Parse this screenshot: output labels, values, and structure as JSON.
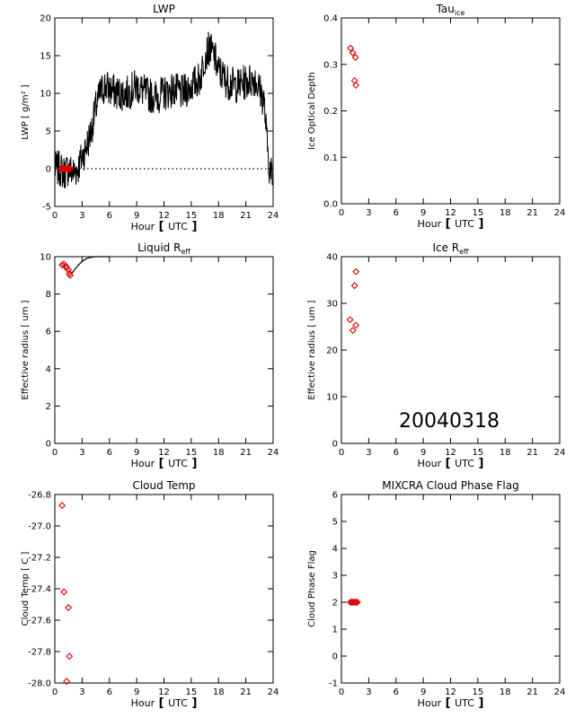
{
  "figure": {
    "date_stamp": "20040318",
    "colors": {
      "axis": "#000000",
      "line": "#000000",
      "marker": "#dd0000",
      "background": "#ffffff"
    }
  },
  "chart_data": [
    {
      "id": "lwp",
      "type": "line",
      "title": "LWP",
      "xlabel_parts": [
        "Hour",
        "UTC"
      ],
      "ylabel": "LWP [ g/m² ]",
      "xlim": [
        0,
        24
      ],
      "ylim": [
        -5,
        20
      ],
      "xticks": [
        0,
        3,
        6,
        9,
        12,
        15,
        18,
        21,
        24
      ],
      "yticks": [
        -5,
        0,
        5,
        10,
        15,
        20
      ],
      "reference_line": {
        "y": 0,
        "style": "dotted"
      },
      "series": [
        {
          "style": "noisy-line",
          "x": [
            0,
            0.5,
            1.0,
            1.5,
            2.0,
            2.5,
            3.0,
            3.5,
            4.0,
            4.5,
            5.0,
            5.5,
            6.0,
            7.0,
            8.0,
            9.0,
            10.0,
            11.0,
            12.0,
            13.0,
            14.0,
            15.0,
            15.5,
            16.0,
            16.5,
            17.0,
            17.5,
            18.0,
            19.0,
            20.0,
            21.0,
            22.0,
            23.0,
            23.3,
            23.6,
            23.9
          ],
          "y": [
            0,
            0,
            -0.5,
            0,
            -0.5,
            0,
            1.5,
            3,
            5,
            8,
            10,
            11,
            10.5,
            10,
            10,
            11,
            10,
            9.5,
            10,
            10.5,
            10,
            11,
            11.5,
            12,
            15,
            16,
            15,
            13,
            11.5,
            11,
            11.5,
            12,
            9,
            4,
            0,
            -1
          ],
          "noise": 1.5
        },
        {
          "style": "markers",
          "x": [
            0.7,
            0.8,
            0.9,
            1.0,
            1.1,
            1.2,
            1.3,
            1.4,
            1.5,
            1.6,
            1.7
          ],
          "y": [
            0,
            0,
            0,
            0,
            0,
            0,
            0,
            0,
            0,
            0,
            0
          ]
        }
      ]
    },
    {
      "id": "tau_ice",
      "type": "scatter",
      "title_main": "Tau",
      "title_sub": "ice",
      "xlabel_parts": [
        "Hour",
        "UTC"
      ],
      "ylabel": "Ice Optical Depth",
      "xlim": [
        0,
        24
      ],
      "ylim": [
        0,
        0.4
      ],
      "xticks": [
        0,
        3,
        6,
        9,
        12,
        15,
        18,
        21,
        24
      ],
      "yticks": [
        0.0,
        0.1,
        0.2,
        0.3,
        0.4
      ],
      "ytick_labels": [
        "0.0",
        "0.1",
        "0.2",
        "0.3",
        "0.4"
      ],
      "series": [
        {
          "style": "markers",
          "x": [
            1.0,
            1.25,
            1.55,
            1.45,
            1.6
          ],
          "y": [
            0.335,
            0.325,
            0.315,
            0.265,
            0.255
          ]
        }
      ]
    },
    {
      "id": "liquid_reff",
      "type": "scatter",
      "title_main": "Liquid R",
      "title_sub": "eff",
      "xlabel_parts": [
        "Hour",
        "UTC"
      ],
      "ylabel": "Effective radius [ um ]",
      "xlim": [
        0,
        24
      ],
      "ylim": [
        0,
        10
      ],
      "xticks": [
        0,
        3,
        6,
        9,
        12,
        15,
        18,
        21,
        24
      ],
      "yticks": [
        0,
        2,
        4,
        6,
        8,
        10
      ],
      "series": [
        {
          "style": "line",
          "x": [
            1.7,
            2.0,
            2.5,
            3.0,
            3.5,
            4.0,
            4.5,
            5.0,
            6.0
          ],
          "y": [
            9.0,
            9.2,
            9.5,
            9.75,
            9.9,
            9.97,
            10,
            10,
            10
          ]
        },
        {
          "style": "markers",
          "x": [
            0.8,
            1.0,
            1.2,
            1.3,
            1.5,
            1.6,
            1.7
          ],
          "y": [
            9.55,
            9.6,
            9.5,
            9.4,
            9.3,
            9.1,
            9.0
          ]
        }
      ]
    },
    {
      "id": "ice_reff",
      "type": "scatter",
      "title_main": "Ice R",
      "title_sub": "eff",
      "xlabel_parts": [
        "Hour",
        "UTC"
      ],
      "ylabel": "Effective radius [ um ]",
      "xlim": [
        0,
        24
      ],
      "ylim": [
        0,
        40
      ],
      "xticks": [
        0,
        3,
        6,
        9,
        12,
        15,
        18,
        21,
        24
      ],
      "yticks": [
        0,
        10,
        20,
        30,
        40
      ],
      "series": [
        {
          "style": "markers",
          "x": [
            1.6,
            1.45,
            0.95,
            1.6,
            1.25
          ],
          "y": [
            36.8,
            33.8,
            26.5,
            25.3,
            24.2
          ]
        }
      ]
    },
    {
      "id": "cloud_temp",
      "type": "scatter",
      "title": "Cloud Temp",
      "xlabel_parts": [
        "Hour",
        "UTC"
      ],
      "ylabel": "Cloud Temp [ C ]",
      "xlim": [
        0,
        24
      ],
      "ylim": [
        -28.0,
        -26.8
      ],
      "xticks": [
        0,
        3,
        6,
        9,
        12,
        15,
        18,
        21,
        24
      ],
      "yticks": [
        -28.0,
        -27.8,
        -27.6,
        -27.4,
        -27.2,
        -27.0,
        -26.8
      ],
      "ytick_labels": [
        "-28.0",
        "-27.8",
        "-27.6",
        "-27.4",
        "-27.2",
        "-27.0",
        "-26.8"
      ],
      "series": [
        {
          "style": "markers",
          "x": [
            0.8,
            1.0,
            1.5,
            1.6,
            1.3
          ],
          "y": [
            -26.87,
            -27.42,
            -27.52,
            -27.83,
            -27.99
          ]
        }
      ]
    },
    {
      "id": "phase_flag",
      "type": "scatter",
      "title": "MIXCRA Cloud Phase Flag",
      "xlabel_parts": [
        "Hour",
        "UTC"
      ],
      "ylabel": "Cloud Phase Flag",
      "xlim": [
        0,
        24
      ],
      "ylim": [
        -1,
        6
      ],
      "xticks": [
        0,
        3,
        6,
        9,
        12,
        15,
        18,
        21,
        24
      ],
      "yticks": [
        -1,
        0,
        1,
        2,
        3,
        4,
        5,
        6
      ],
      "series": [
        {
          "style": "markers",
          "x": [
            1.0,
            1.15,
            1.3,
            1.45,
            1.6,
            1.75
          ],
          "y": [
            2,
            2,
            2,
            2,
            2,
            2
          ]
        }
      ]
    }
  ]
}
